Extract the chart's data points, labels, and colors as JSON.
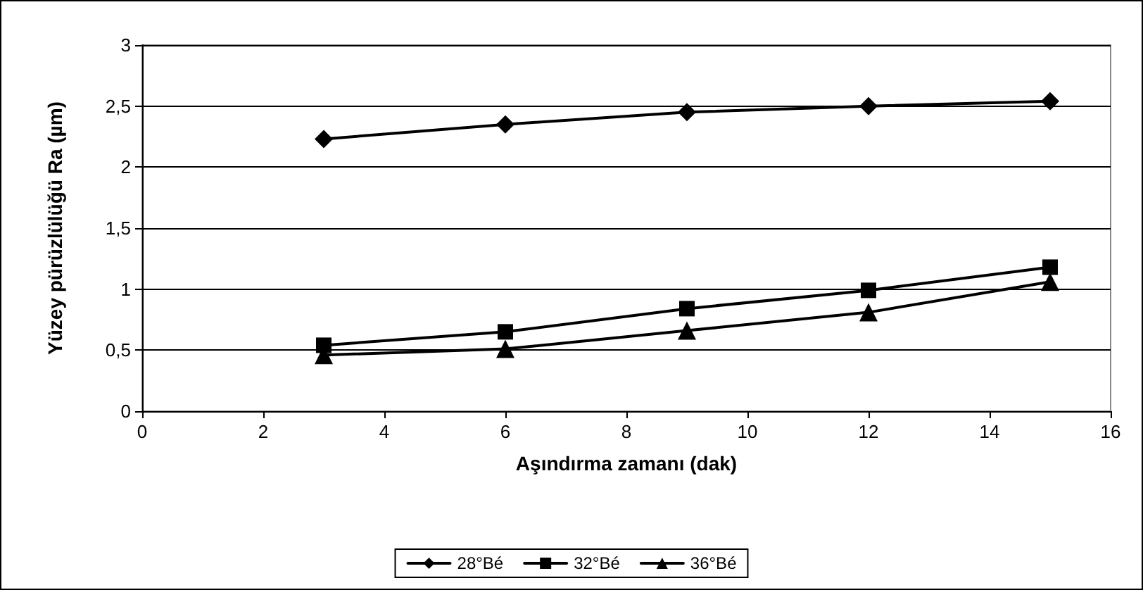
{
  "chart_data": {
    "type": "line",
    "xlabel": "Aşındırma zamanı (dak)",
    "ylabel": "Yüzey pürüzlülüğü Ra (µm)",
    "x": [
      3,
      6,
      9,
      12,
      15
    ],
    "series": [
      {
        "name": "28°Bé",
        "color": "#000000",
        "marker": "diamond",
        "values": [
          2.23,
          2.35,
          2.45,
          2.5,
          2.54
        ]
      },
      {
        "name": "32°Bé",
        "color": "#000000",
        "marker": "square",
        "values": [
          0.54,
          0.65,
          0.84,
          0.99,
          1.18
        ]
      },
      {
        "name": "36°Bé",
        "color": "#000000",
        "marker": "triangle",
        "values": [
          0.46,
          0.51,
          0.66,
          0.81,
          1.06
        ]
      }
    ],
    "xlim": [
      0,
      16
    ],
    "xticks": [
      0,
      2,
      4,
      6,
      8,
      10,
      12,
      14,
      16
    ],
    "ylim": [
      0,
      3
    ],
    "yticks": [
      0,
      {
        "value": 0.5,
        "label": "0,5"
      },
      1,
      {
        "value": 1.5,
        "label": "1,5"
      },
      2,
      {
        "value": 2.5,
        "label": "2,5"
      },
      3
    ],
    "grid": "y",
    "legend": "bottom",
    "line_style": "solid"
  }
}
